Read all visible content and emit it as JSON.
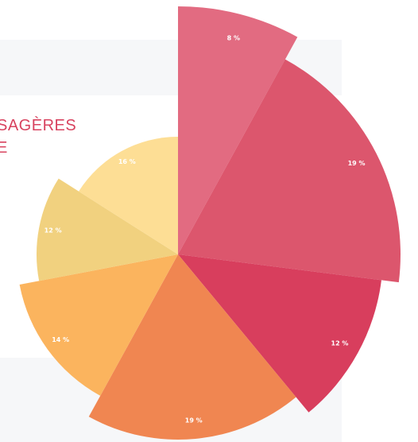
{
  "heading": [
    "SAGÈRES",
    "E"
  ],
  "chart_data": {
    "type": "pie",
    "values": [
      8,
      19,
      12,
      19,
      14,
      12,
      16
    ],
    "value_labels": [
      "8 %",
      "19 %",
      "12 %",
      "19 %",
      "14 %",
      "12 %",
      "16 %"
    ],
    "colors": [
      "#e0637a",
      "#da4d65",
      "#d63454",
      "#ef7f48",
      "#fbb055",
      "#f0cf78",
      "#fddc8f"
    ]
  }
}
